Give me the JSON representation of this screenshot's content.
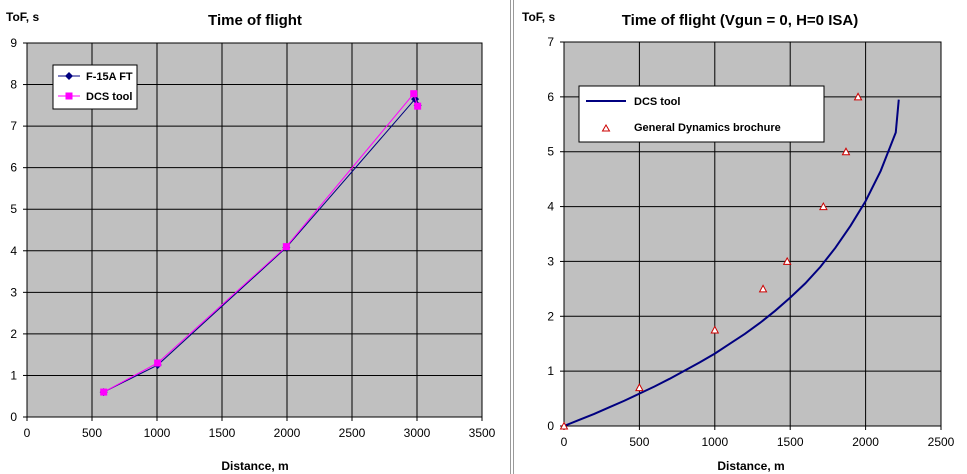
{
  "chart_data": [
    {
      "type": "line",
      "title": "Time of flight",
      "xlabel": "Distance, m",
      "ylabel": "ToF, s",
      "xlim": [
        0,
        3500
      ],
      "ylim": [
        0,
        9
      ],
      "xticks": [
        "0",
        "500",
        "1000",
        "1500",
        "2000",
        "2500",
        "3000",
        "3500"
      ],
      "yticks": [
        "0",
        "1",
        "2",
        "3",
        "4",
        "5",
        "6",
        "7",
        "8",
        "9"
      ],
      "grid": true,
      "legend_position": "top-left",
      "colors": {
        "plot_bg": "#c0c0c0",
        "grid": "#000000"
      },
      "series": [
        {
          "name": "F-15A FT",
          "marker": "diamond",
          "color": "#000080",
          "x": [
            590,
            1005,
            1995,
            2985,
            3005
          ],
          "y": [
            0.6,
            1.25,
            4.08,
            7.65,
            7.5
          ]
        },
        {
          "name": "DCS tool",
          "marker": "square",
          "color": "#ff00ff",
          "x": [
            590,
            1005,
            1995,
            2975,
            3005
          ],
          "y": [
            0.6,
            1.3,
            4.1,
            7.78,
            7.48
          ]
        }
      ]
    },
    {
      "type": "line",
      "title": "Time of flight (Vgun = 0, H=0 ISA)",
      "xlabel": "Distance, m",
      "ylabel": "ToF, s",
      "xlim": [
        0,
        2500
      ],
      "ylim": [
        0,
        7
      ],
      "xticks": [
        "0",
        "500",
        "1000",
        "1500",
        "2000",
        "2500"
      ],
      "yticks": [
        "0",
        "1",
        "2",
        "3",
        "4",
        "5",
        "6",
        "7"
      ],
      "grid": true,
      "legend_position": "top-left",
      "colors": {
        "plot_bg": "#c0c0c0",
        "grid": "#000000"
      },
      "series": [
        {
          "name": "DCS tool",
          "marker": "none",
          "color": "#000080",
          "x": [
            0,
            100,
            200,
            300,
            400,
            500,
            600,
            700,
            800,
            900,
            1000,
            1100,
            1200,
            1300,
            1400,
            1500,
            1600,
            1700,
            1800,
            1900,
            2000,
            2100,
            2200,
            2220
          ],
          "y": [
            0,
            0.11,
            0.22,
            0.34,
            0.46,
            0.59,
            0.72,
            0.86,
            1.01,
            1.16,
            1.32,
            1.5,
            1.68,
            1.88,
            2.1,
            2.34,
            2.6,
            2.9,
            3.25,
            3.65,
            4.1,
            4.65,
            5.35,
            5.95
          ]
        },
        {
          "name": "General Dynamics brochure",
          "marker": "triangle",
          "color": "#cc0000",
          "x": [
            0,
            500,
            1000,
            1320,
            1480,
            1720,
            1870,
            1950
          ],
          "y": [
            0,
            0.7,
            1.75,
            2.5,
            3.0,
            4.0,
            5.0,
            6.0
          ]
        }
      ]
    }
  ]
}
